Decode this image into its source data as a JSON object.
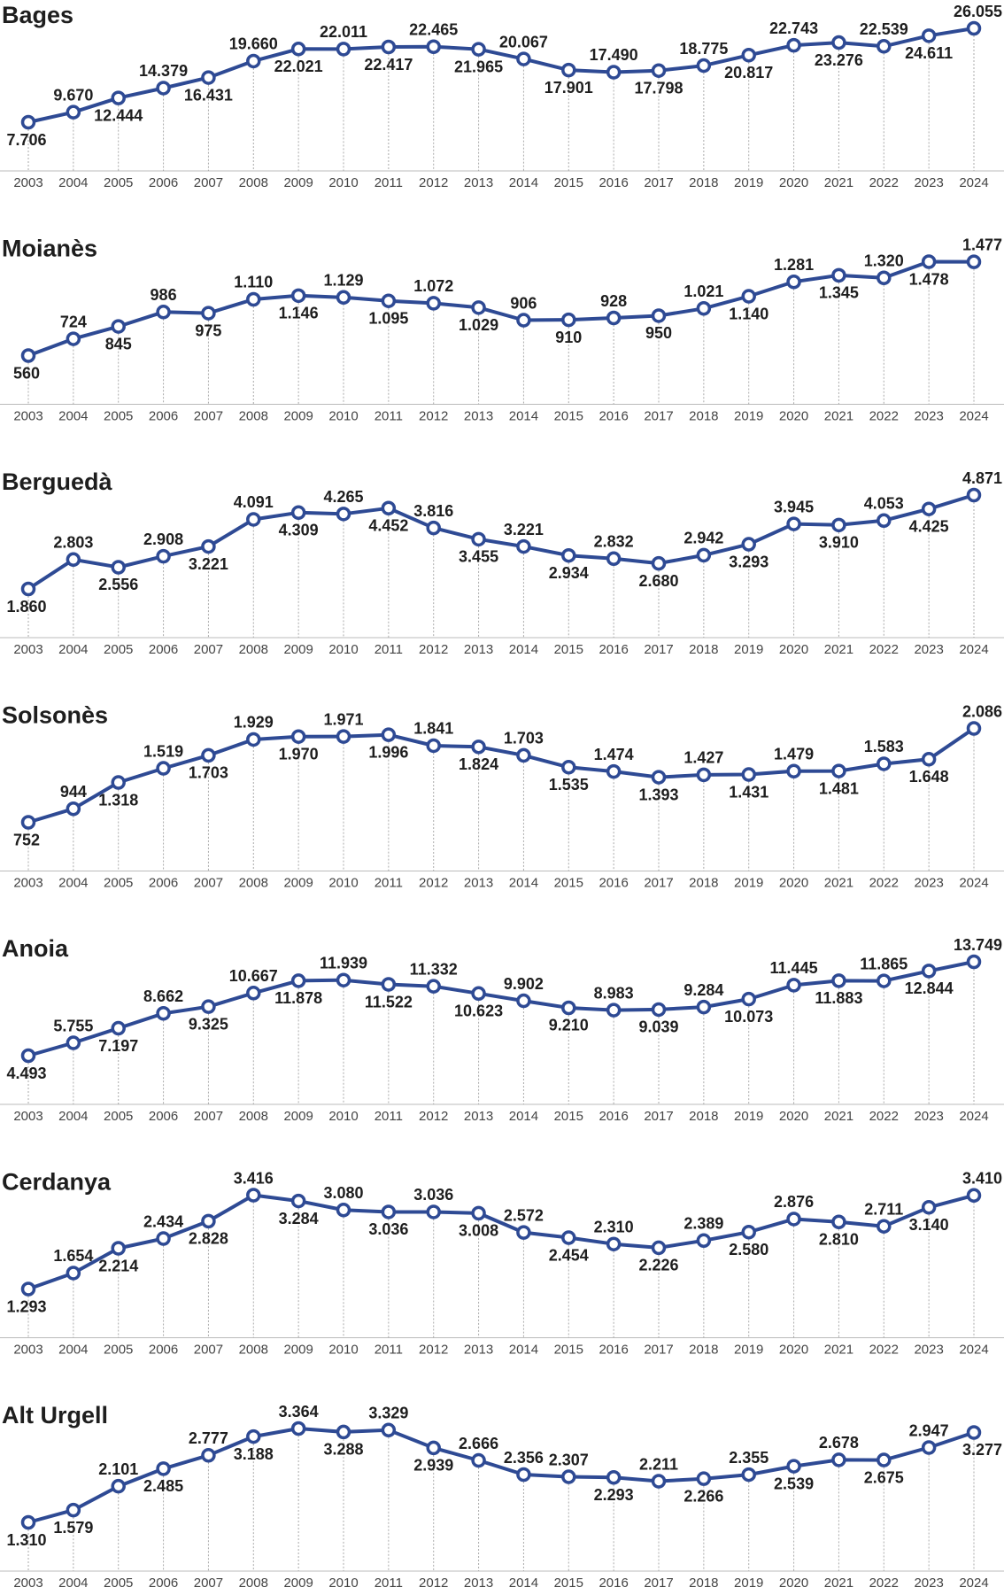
{
  "chart_data": [
    {
      "type": "line",
      "title": "Bages",
      "color": "#2e4a94",
      "categories": [
        "2003",
        "2004",
        "2005",
        "2006",
        "2007",
        "2008",
        "2009",
        "2010",
        "2011",
        "2012",
        "2013",
        "2014",
        "2015",
        "2016",
        "2017",
        "2018",
        "2019",
        "2020",
        "2021",
        "2022",
        "2023",
        "2024"
      ],
      "values": [
        7706,
        9670,
        12444,
        14379,
        16431,
        19660,
        22021,
        22011,
        22417,
        22465,
        21965,
        20067,
        17901,
        17490,
        17798,
        18775,
        20817,
        22743,
        23276,
        22539,
        24611,
        26055
      ],
      "value_labels": [
        "7.706",
        "9.670",
        "12.444",
        "14.379",
        "16.431",
        "19.660",
        "22.021",
        "22.011",
        "22.417",
        "22.465",
        "21.965",
        "20.067",
        "17.901",
        "17.490",
        "17.798",
        "18.775",
        "20.817",
        "22.743",
        "23.276",
        "22.539",
        "24.611",
        "26.055"
      ]
    },
    {
      "type": "line",
      "title": "Moianès",
      "color": "#2e4a94",
      "categories": [
        "2003",
        "2004",
        "2005",
        "2006",
        "2007",
        "2008",
        "2009",
        "2010",
        "2011",
        "2012",
        "2013",
        "2014",
        "2015",
        "2016",
        "2017",
        "2018",
        "2019",
        "2020",
        "2021",
        "2022",
        "2023",
        "2024"
      ],
      "values": [
        560,
        724,
        845,
        986,
        975,
        1110,
        1146,
        1129,
        1095,
        1072,
        1029,
        906,
        910,
        928,
        950,
        1021,
        1140,
        1281,
        1345,
        1320,
        1478,
        1477
      ],
      "value_labels": [
        "560",
        "724",
        "845",
        "986",
        "975",
        "1.110",
        "1.146",
        "1.129",
        "1.095",
        "1.072",
        "1.029",
        "906",
        "910",
        "928",
        "950",
        "1.021",
        "1.140",
        "1.281",
        "1.345",
        "1.320",
        "1.478",
        "1.477"
      ]
    },
    {
      "type": "line",
      "title": "Berguedà",
      "color": "#2e4a94",
      "categories": [
        "2003",
        "2004",
        "2005",
        "2006",
        "2007",
        "2008",
        "2009",
        "2010",
        "2011",
        "2012",
        "2013",
        "2014",
        "2015",
        "2016",
        "2017",
        "2018",
        "2019",
        "2020",
        "2021",
        "2022",
        "2023",
        "2024"
      ],
      "values": [
        1860,
        2803,
        2556,
        2908,
        3221,
        4091,
        4309,
        4265,
        4452,
        3816,
        3455,
        3221,
        2934,
        2832,
        2680,
        2942,
        3293,
        3945,
        3910,
        4053,
        4425,
        4871
      ],
      "value_labels": [
        "1.860",
        "2.803",
        "2.556",
        "2.908",
        "3.221",
        "4.091",
        "4.309",
        "4.265",
        "4.452",
        "3.816",
        "3.455",
        "3.221",
        "2.934",
        "2.832",
        "2.680",
        "2.942",
        "3.293",
        "3.945",
        "3.910",
        "4.053",
        "4.425",
        "4.871"
      ]
    },
    {
      "type": "line",
      "title": "Solsonès",
      "color": "#2e4a94",
      "categories": [
        "2003",
        "2004",
        "2005",
        "2006",
        "2007",
        "2008",
        "2009",
        "2010",
        "2011",
        "2012",
        "2013",
        "2014",
        "2015",
        "2016",
        "2017",
        "2018",
        "2019",
        "2020",
        "2021",
        "2022",
        "2023",
        "2024"
      ],
      "values": [
        752,
        944,
        1318,
        1519,
        1703,
        1929,
        1970,
        1971,
        1996,
        1841,
        1824,
        1703,
        1535,
        1474,
        1393,
        1427,
        1431,
        1479,
        1481,
        1583,
        1648,
        2086
      ],
      "value_labels": [
        "752",
        "944",
        "1.318",
        "1.519",
        "1.703",
        "1.929",
        "1.970",
        "1.971",
        "1.996",
        "1.841",
        "1.824",
        "1.703",
        "1.535",
        "1.474",
        "1.393",
        "1.427",
        "1.431",
        "1.479",
        "1.481",
        "1.583",
        "1.648",
        "2.086"
      ]
    },
    {
      "type": "line",
      "title": "Anoia",
      "color": "#2e4a94",
      "categories": [
        "2003",
        "2004",
        "2005",
        "2006",
        "2007",
        "2008",
        "2009",
        "2010",
        "2011",
        "2012",
        "2013",
        "2014",
        "2015",
        "2016",
        "2017",
        "2018",
        "2019",
        "2020",
        "2021",
        "2022",
        "2023",
        "2024"
      ],
      "values": [
        4493,
        5755,
        7197,
        8662,
        9325,
        10667,
        11878,
        11939,
        11522,
        11332,
        10623,
        9902,
        9210,
        8983,
        9039,
        9284,
        10073,
        11445,
        11883,
        11865,
        12844,
        13749
      ],
      "value_labels": [
        "4.493",
        "5.755",
        "7.197",
        "8.662",
        "9.325",
        "10.667",
        "11.878",
        "11.939",
        "11.522",
        "11.332",
        "10.623",
        "9.902",
        "9.210",
        "8.983",
        "9.039",
        "9.284",
        "10.073",
        "11.445",
        "11.883",
        "11.865",
        "12.844",
        "13.749"
      ]
    },
    {
      "type": "line",
      "title": "Cerdanya",
      "color": "#2e4a94",
      "categories": [
        "2003",
        "2004",
        "2005",
        "2006",
        "2007",
        "2008",
        "2009",
        "2010",
        "2011",
        "2012",
        "2013",
        "2014",
        "2015",
        "2016",
        "2017",
        "2018",
        "2019",
        "2020",
        "2021",
        "2022",
        "2023",
        "2024"
      ],
      "values": [
        1293,
        1654,
        2214,
        2434,
        2828,
        3416,
        3284,
        3080,
        3036,
        3036,
        3008,
        2572,
        2454,
        2310,
        2226,
        2389,
        2580,
        2876,
        2810,
        2711,
        3140,
        3410
      ],
      "value_labels": [
        "1.293",
        "1.654",
        "2.214",
        "2.434",
        "2.828",
        "3.416",
        "3.284",
        "3.080",
        "3.036",
        "3.036",
        "3.008",
        "2.572",
        "2.454",
        "2.310",
        "2.226",
        "2.389",
        "2.580",
        "2.876",
        "2.810",
        "2.711",
        "3.140",
        "3.410"
      ]
    },
    {
      "type": "line",
      "title": "Alt Urgell",
      "color": "#2e4a94",
      "categories": [
        "2003",
        "2004",
        "2005",
        "2006",
        "2007",
        "2008",
        "2009",
        "2010",
        "2011",
        "2012",
        "2013",
        "2014",
        "2015",
        "2016",
        "2017",
        "2018",
        "2019",
        "2020",
        "2021",
        "2022",
        "2023",
        "2024"
      ],
      "values": [
        1310,
        1579,
        2101,
        2485,
        2777,
        3188,
        3364,
        3288,
        3329,
        2939,
        2666,
        2356,
        2307,
        2293,
        2211,
        2266,
        2355,
        2539,
        2678,
        2675,
        2947,
        3277
      ],
      "value_labels": [
        "1.310",
        "1.579",
        "2.101",
        "2.485",
        "2.777",
        "3.188",
        "3.364",
        "3.288",
        "3.329",
        "2.939",
        "2.666",
        "2.356",
        "2.307",
        "2.293",
        "2.211",
        "2.266",
        "2.355",
        "2.539",
        "2.678",
        "2.675",
        "2.947",
        "3.277"
      ]
    }
  ]
}
